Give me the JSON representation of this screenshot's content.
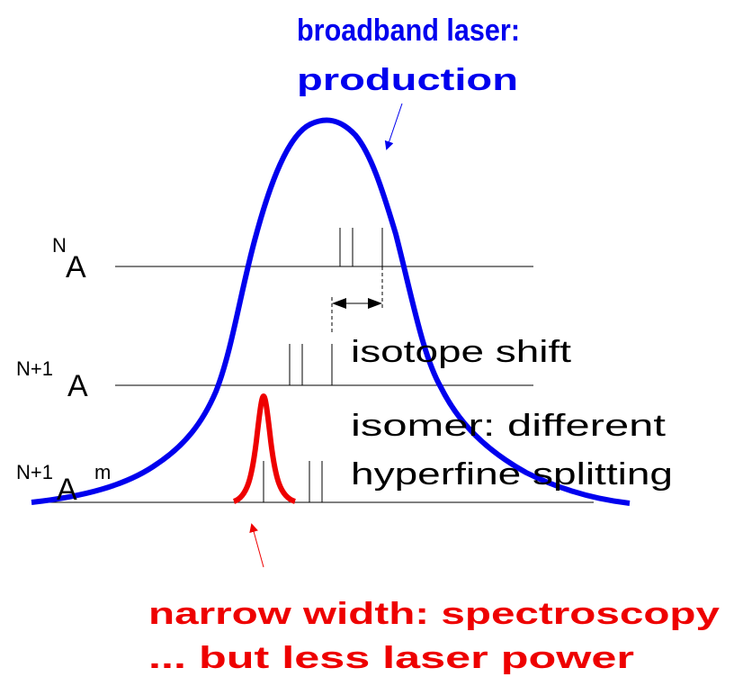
{
  "title_lines": [
    "broadband laser:",
    "production"
  ],
  "levels": [
    {
      "superscript": "N",
      "label": "A"
    },
    {
      "superscript": "N+1",
      "label": "A"
    },
    {
      "superscript": "N+1",
      "label": "A",
      "suffix": "m"
    }
  ],
  "annotations": {
    "isotope_shift": "isotope shift",
    "isomer": [
      "isomer: different",
      "hyperfine splitting"
    ]
  },
  "narrow_lines": [
    "narrow width: spectroscopy",
    "... but less laser power"
  ]
}
